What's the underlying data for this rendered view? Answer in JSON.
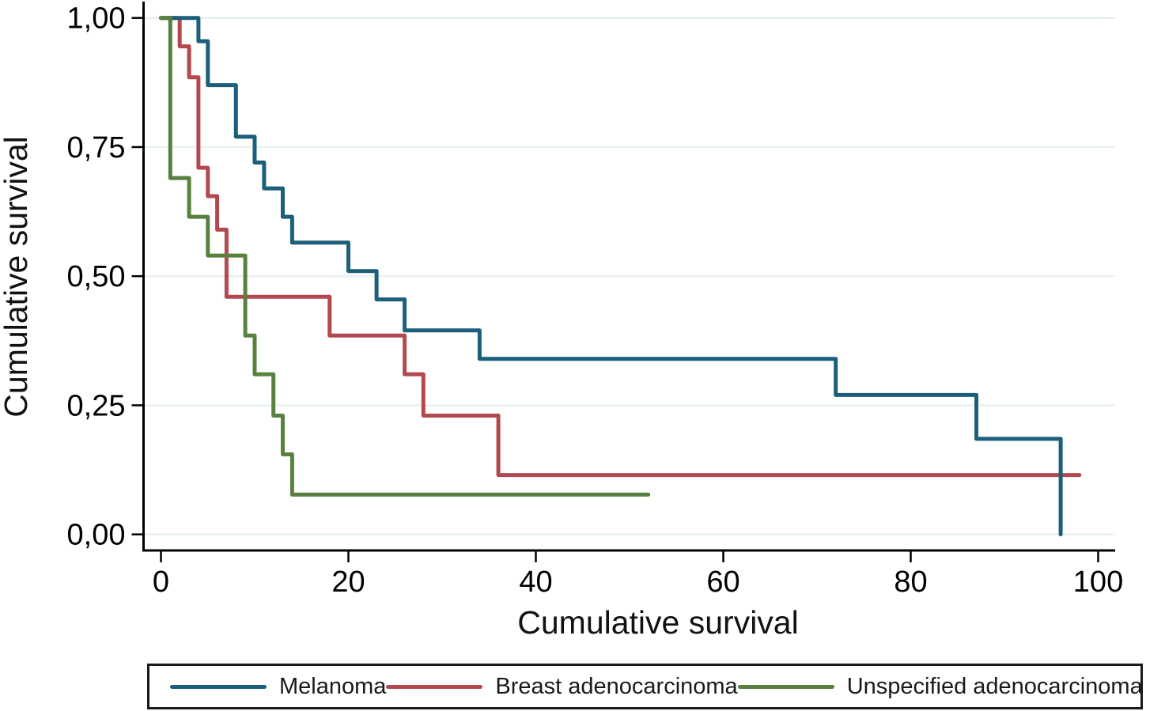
{
  "chart_data": {
    "type": "line",
    "subtype": "kaplan-meier-step",
    "title": "",
    "xlabel": "Cumulative survival",
    "ylabel": "Cumulative survival",
    "xlim": [
      0,
      100
    ],
    "ylim": [
      0,
      1
    ],
    "x_ticks": [
      0,
      20,
      40,
      60,
      80,
      100
    ],
    "x_tick_labels": [
      "0",
      "20",
      "40",
      "60",
      "80",
      "100"
    ],
    "y_ticks": [
      0,
      0.25,
      0.5,
      0.75,
      1
    ],
    "y_tick_labels": [
      "0,00",
      "0,25",
      "0,50",
      "0,75",
      "1,00"
    ],
    "grid": "horizontal",
    "grid_color": "#e8f1ef",
    "axis_color": "#000000",
    "legend_position": "bottom",
    "series": [
      {
        "name": "Breast adenocarcinoma",
        "color": "#b4484f",
        "points": [
          [
            0,
            1.0
          ],
          [
            2,
            1.0
          ],
          [
            2,
            0.945
          ],
          [
            3,
            0.945
          ],
          [
            3,
            0.885
          ],
          [
            4,
            0.885
          ],
          [
            4,
            0.71
          ],
          [
            5,
            0.71
          ],
          [
            5,
            0.655
          ],
          [
            6,
            0.655
          ],
          [
            6,
            0.59
          ],
          [
            7,
            0.59
          ],
          [
            7,
            0.46
          ],
          [
            18,
            0.46
          ],
          [
            18,
            0.385
          ],
          [
            26,
            0.385
          ],
          [
            26,
            0.31
          ],
          [
            28,
            0.31
          ],
          [
            28,
            0.23
          ],
          [
            36,
            0.23
          ],
          [
            36,
            0.115
          ],
          [
            98,
            0.115
          ]
        ]
      },
      {
        "name": "Melanoma",
        "color": "#1b5f7a",
        "points": [
          [
            0,
            1.0
          ],
          [
            4,
            1.0
          ],
          [
            4,
            0.955
          ],
          [
            5,
            0.955
          ],
          [
            5,
            0.87
          ],
          [
            8,
            0.87
          ],
          [
            8,
            0.77
          ],
          [
            10,
            0.77
          ],
          [
            10,
            0.72
          ],
          [
            11,
            0.72
          ],
          [
            11,
            0.67
          ],
          [
            13,
            0.67
          ],
          [
            13,
            0.615
          ],
          [
            14,
            0.615
          ],
          [
            14,
            0.565
          ],
          [
            20,
            0.565
          ],
          [
            20,
            0.51
          ],
          [
            23,
            0.51
          ],
          [
            23,
            0.455
          ],
          [
            26,
            0.455
          ],
          [
            26,
            0.395
          ],
          [
            34,
            0.395
          ],
          [
            34,
            0.34
          ],
          [
            72,
            0.34
          ],
          [
            72,
            0.27
          ],
          [
            87,
            0.27
          ],
          [
            87,
            0.185
          ],
          [
            96,
            0.185
          ],
          [
            96,
            0.0
          ]
        ]
      },
      {
        "name": "Unspecified adenocarcinoma",
        "color": "#588140",
        "points": [
          [
            0,
            1.0
          ],
          [
            1,
            1.0
          ],
          [
            1,
            0.69
          ],
          [
            3,
            0.69
          ],
          [
            3,
            0.615
          ],
          [
            5,
            0.615
          ],
          [
            5,
            0.54
          ],
          [
            9,
            0.54
          ],
          [
            9,
            0.385
          ],
          [
            10,
            0.385
          ],
          [
            10,
            0.31
          ],
          [
            12,
            0.31
          ],
          [
            12,
            0.23
          ],
          [
            13,
            0.23
          ],
          [
            13,
            0.155
          ],
          [
            14,
            0.155
          ],
          [
            14,
            0.077
          ],
          [
            52,
            0.077
          ]
        ]
      }
    ],
    "legend_order": [
      "Melanoma",
      "Breast adenocarcinoma",
      "Unspecified adenocarcinoma"
    ]
  },
  "legend": {
    "items": [
      {
        "label": "Melanoma",
        "color": "#1b5f7a"
      },
      {
        "label": "Breast adenocarcinoma",
        "color": "#b4484f"
      },
      {
        "label": "Unspecified adenocarcinoma",
        "color": "#588140"
      }
    ]
  }
}
